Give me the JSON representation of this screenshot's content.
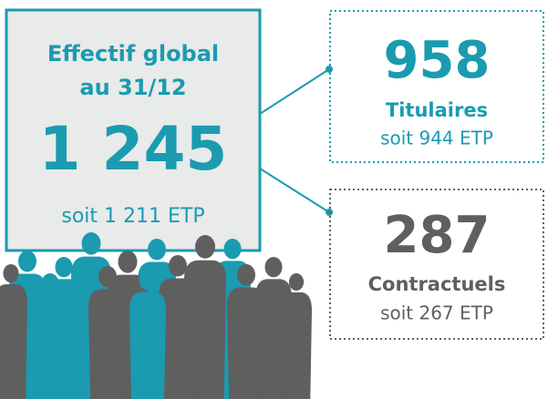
{
  "main": {
    "title_line1": "Effectif global",
    "title_line2": "au 31/12",
    "total": "1 245",
    "etp": "soit 1 211 ETP"
  },
  "groups": [
    {
      "count": "958",
      "label": "Titulaires",
      "etp": "soit 944 ETP"
    },
    {
      "count": "287",
      "label": "Contractuels",
      "etp": "soit 267 ETP"
    }
  ]
}
